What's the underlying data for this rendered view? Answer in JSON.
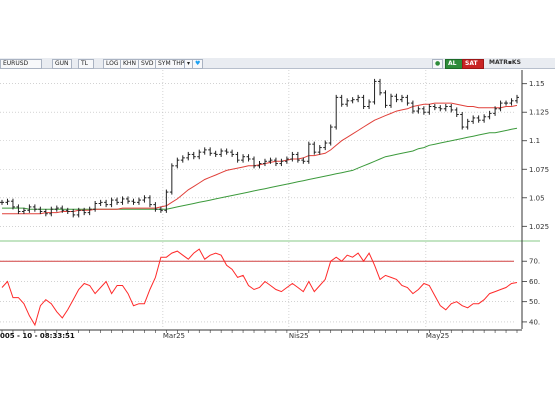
{
  "toolbar": {
    "symbol": "EURUSD",
    "gun": "GUN",
    "tl": "TL",
    "log": "LOG",
    "khn": "KHN",
    "svd": "SVD",
    "sym_thp": "SYM THP",
    "al": "AL",
    "sat": "SAT",
    "matriks": "MATR▪KS"
  },
  "colors": {
    "price_bars": "#222222",
    "ma_short": "#e0403a",
    "ma_long": "#3c9a3c",
    "rsi": "#ff2a2a",
    "rsi_threshold": "#d04040",
    "panel_separator": "#9fd39f",
    "grid": "#b8b8b8"
  },
  "chart_data": [
    {
      "type": "line",
      "subtype": "ohlc",
      "title": "",
      "yticks": [
        "1.15",
        "1.125",
        "1.1",
        "1.075",
        "1.05",
        "1.025"
      ],
      "ylim": [
        1.013,
        1.162
      ],
      "x_tick_labels": [
        "Mar25",
        "Nis25",
        "May25"
      ],
      "grid": true,
      "series": [
        {
          "values": [
            1.046,
            1.047,
            1.042,
            1.038,
            1.039,
            1.042,
            1.04,
            1.038,
            1.036,
            1.04,
            1.041,
            1.039,
            1.038,
            1.035,
            1.039,
            1.037,
            1.04,
            1.045,
            1.046,
            1.044,
            1.048,
            1.046,
            1.049,
            1.047,
            1.046,
            1.048,
            1.05,
            1.044,
            1.04,
            1.039,
            1.055,
            1.078,
            1.083,
            1.085,
            1.088,
            1.086,
            1.09,
            1.092,
            1.089,
            1.088,
            1.091,
            1.09,
            1.088,
            1.083,
            1.086,
            1.084,
            1.078,
            1.08,
            1.082,
            1.083,
            1.08,
            1.082,
            1.084,
            1.088,
            1.083,
            1.082,
            1.097,
            1.09,
            1.094,
            1.098,
            1.112,
            1.138,
            1.132,
            1.135,
            1.136,
            1.138,
            1.13,
            1.134,
            1.152,
            1.142,
            1.131,
            1.139,
            1.136,
            1.138,
            1.133,
            1.126,
            1.128,
            1.125,
            1.13,
            1.129,
            1.128,
            1.13,
            1.127,
            1.123,
            1.112,
            1.117,
            1.12,
            1.118,
            1.121,
            1.124,
            1.128,
            1.133,
            1.133,
            1.135,
            1.138
          ]
        },
        {
          "name": "",
          "values": [
            1.036,
            1.036,
            1.036,
            1.036,
            1.036,
            1.036,
            1.036,
            1.036,
            1.037,
            1.037,
            1.037,
            1.038,
            1.038,
            1.038,
            1.039,
            1.039,
            1.039,
            1.04,
            1.04,
            1.04,
            1.04,
            1.04,
            1.041,
            1.041,
            1.041,
            1.041,
            1.041,
            1.041,
            1.041,
            1.042,
            1.043,
            1.046,
            1.049,
            1.053,
            1.057,
            1.06,
            1.063,
            1.066,
            1.068,
            1.07,
            1.072,
            1.074,
            1.075,
            1.076,
            1.077,
            1.078,
            1.078,
            1.079,
            1.08,
            1.081,
            1.082,
            1.082,
            1.083,
            1.084,
            1.084,
            1.085,
            1.087,
            1.087,
            1.088,
            1.089,
            1.092,
            1.096,
            1.1,
            1.103,
            1.106,
            1.109,
            1.112,
            1.115,
            1.118,
            1.12,
            1.122,
            1.124,
            1.126,
            1.127,
            1.128,
            1.13,
            1.131,
            1.132,
            1.132,
            1.133,
            1.133,
            1.133,
            1.133,
            1.132,
            1.131,
            1.13,
            1.13,
            1.129,
            1.129,
            1.129,
            1.129,
            1.129,
            1.13,
            1.13,
            1.131
          ]
        },
        {
          "name": "",
          "values": [
            1.041,
            1.041,
            1.041,
            1.041,
            1.041,
            1.04,
            1.04,
            1.04,
            1.04,
            1.04,
            1.04,
            1.04,
            1.04,
            1.04,
            1.04,
            1.04,
            1.04,
            1.04,
            1.04,
            1.04,
            1.04,
            1.04,
            1.04,
            1.04,
            1.04,
            1.04,
            1.04,
            1.04,
            1.04,
            1.04,
            1.04,
            1.041,
            1.042,
            1.043,
            1.044,
            1.045,
            1.046,
            1.047,
            1.048,
            1.049,
            1.05,
            1.051,
            1.052,
            1.053,
            1.054,
            1.055,
            1.056,
            1.057,
            1.058,
            1.059,
            1.06,
            1.061,
            1.062,
            1.063,
            1.064,
            1.065,
            1.066,
            1.067,
            1.068,
            1.069,
            1.07,
            1.071,
            1.072,
            1.073,
            1.074,
            1.076,
            1.078,
            1.08,
            1.082,
            1.084,
            1.086,
            1.087,
            1.088,
            1.089,
            1.09,
            1.091,
            1.093,
            1.094,
            1.096,
            1.097,
            1.098,
            1.099,
            1.1,
            1.101,
            1.102,
            1.103,
            1.104,
            1.105,
            1.106,
            1.107,
            1.107,
            1.108,
            1.109,
            1.11,
            1.111
          ]
        }
      ]
    },
    {
      "type": "line",
      "title": "",
      "yticks": [
        "70.",
        "60.",
        "50.",
        "40."
      ],
      "ylim": [
        36.5,
        79.5
      ],
      "threshold": 70,
      "series": [
        {
          "name": "",
          "values": [
            57.0,
            60.0,
            52.0,
            52.0,
            49.0,
            43.0,
            38.5,
            48.0,
            51.0,
            49.0,
            45.0,
            42.0,
            46.0,
            51.0,
            56.0,
            59.0,
            58.0,
            54.0,
            57.0,
            60.0,
            54.0,
            58.0,
            58.0,
            54.0,
            48.0,
            49.0,
            49.0,
            56.0,
            62.0,
            72.0,
            72.0,
            74.0,
            75.0,
            73.0,
            71.0,
            74.0,
            76.0,
            71.0,
            73.0,
            74.0,
            73.0,
            68.0,
            66.0,
            62.0,
            63.0,
            58.0,
            56.0,
            57.0,
            60.0,
            58.0,
            56.0,
            55.0,
            57.0,
            59.0,
            57.0,
            55.0,
            60.0,
            55.0,
            58.0,
            61.0,
            70.0,
            72.0,
            70.0,
            73.0,
            72.0,
            74.0,
            70.0,
            74.0,
            68.0,
            61.0,
            63.0,
            62.0,
            61.0,
            58.0,
            57.0,
            54.0,
            56.0,
            59.0,
            58.0,
            53.0,
            48.0,
            46.0,
            49.0,
            50.0,
            48.0,
            47.0,
            49.0,
            49.0,
            51.0,
            54.0,
            55.0,
            56.0,
            57.0,
            59.0,
            59.5
          ]
        }
      ]
    }
  ],
  "timestamp_label": "005 - 10 - 08:33:51"
}
